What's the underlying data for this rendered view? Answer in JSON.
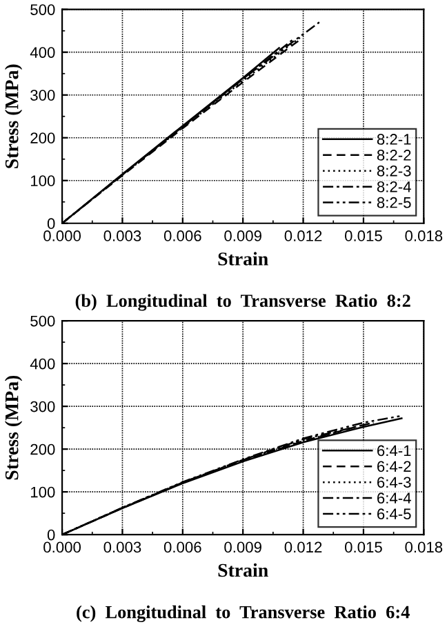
{
  "chart_data": [
    {
      "type": "line",
      "title": "(b)  Longitudinal  to  Transverse  Ratio  8:2",
      "xlabel": "Strain",
      "ylabel": "Stress (MPa)",
      "xlim": [
        0,
        0.018
      ],
      "ylim": [
        0,
        500
      ],
      "xticks": [
        {
          "value": 0,
          "label": "0.000"
        },
        {
          "value": 0.003,
          "label": "0.003"
        },
        {
          "value": 0.006,
          "label": "0.006"
        },
        {
          "value": 0.009,
          "label": "0.009"
        },
        {
          "value": 0.012,
          "label": "0.012"
        },
        {
          "value": 0.015,
          "label": "0.015"
        },
        {
          "value": 0.018,
          "label": "0.018"
        }
      ],
      "yticks": [
        0,
        100,
        200,
        300,
        400,
        500
      ],
      "grid": true,
      "legend": "bottom right",
      "series": [
        {
          "name": "8:2-1",
          "color": "#000000",
          "line_style": "solid",
          "x": [
            0,
            0.003,
            0.006,
            0.009,
            0.0108
          ],
          "values": [
            0,
            115,
            228,
            340,
            410
          ]
        },
        {
          "name": "8:2-2",
          "color": "#000000",
          "line_style": "dashed",
          "x": [
            0,
            0.003,
            0.006,
            0.009,
            0.0118
          ],
          "values": [
            0,
            112,
            222,
            330,
            428
          ]
        },
        {
          "name": "8:2-3",
          "color": "#000000",
          "line_style": "dotted",
          "x": [
            0,
            0.003,
            0.006,
            0.009,
            0.012
          ],
          "values": [
            0,
            113,
            224,
            333,
            440
          ]
        },
        {
          "name": "8:2-4",
          "color": "#000000",
          "line_style": "dashdot",
          "x": [
            0,
            0.003,
            0.006,
            0.009,
            0.0115
          ],
          "values": [
            0,
            114,
            226,
            337,
            430
          ]
        },
        {
          "name": "8:2-5",
          "color": "#000000",
          "line_style": "dashdotdot",
          "x": [
            0,
            0.003,
            0.006,
            0.009,
            0.0128
          ],
          "values": [
            0,
            114,
            226,
            338,
            470
          ]
        }
      ]
    },
    {
      "type": "line",
      "title": "(c)  Longitudinal  to  Transverse  Ratio  6:4",
      "xlabel": "Strain",
      "ylabel": "Stress (MPa)",
      "xlim": [
        0,
        0.018
      ],
      "ylim": [
        0,
        500
      ],
      "xticks": [
        {
          "value": 0,
          "label": "0.000"
        },
        {
          "value": 0.003,
          "label": "0.003"
        },
        {
          "value": 0.006,
          "label": "0.006"
        },
        {
          "value": 0.009,
          "label": "0.009"
        },
        {
          "value": 0.012,
          "label": "0.012"
        },
        {
          "value": 0.015,
          "label": "0.015"
        },
        {
          "value": 0.018,
          "label": "0.018"
        }
      ],
      "yticks": [
        0,
        100,
        200,
        300,
        400,
        500
      ],
      "grid": true,
      "legend": "bottom right",
      "series": [
        {
          "name": "6:4-1",
          "color": "#000000",
          "line_style": "solid",
          "x": [
            0,
            0.003,
            0.006,
            0.009,
            0.012,
            0.015,
            0.0169
          ],
          "values": [
            0,
            62,
            120,
            171,
            216,
            252,
            272
          ]
        },
        {
          "name": "6:4-2",
          "color": "#000000",
          "line_style": "dashed",
          "x": [
            0,
            0.003,
            0.006,
            0.009,
            0.012,
            0.0148
          ],
          "values": [
            0,
            62,
            121,
            173,
            219,
            254
          ]
        },
        {
          "name": "6:4-3",
          "color": "#000000",
          "line_style": "dotted",
          "x": [
            0,
            0.003,
            0.006,
            0.009,
            0.012,
            0.0138
          ],
          "values": [
            0,
            63,
            122,
            174,
            220,
            240
          ]
        },
        {
          "name": "6:4-4",
          "color": "#000000",
          "line_style": "dashdot",
          "x": [
            0,
            0.003,
            0.006,
            0.009,
            0.012,
            0.0155
          ],
          "values": [
            0,
            63,
            122,
            175,
            223,
            262
          ]
        },
        {
          "name": "6:4-5",
          "color": "#000000",
          "line_style": "dashdotdot",
          "x": [
            0,
            0.003,
            0.006,
            0.009,
            0.012,
            0.015,
            0.0168
          ],
          "values": [
            0,
            63,
            123,
            176,
            225,
            262,
            277
          ]
        }
      ]
    }
  ]
}
